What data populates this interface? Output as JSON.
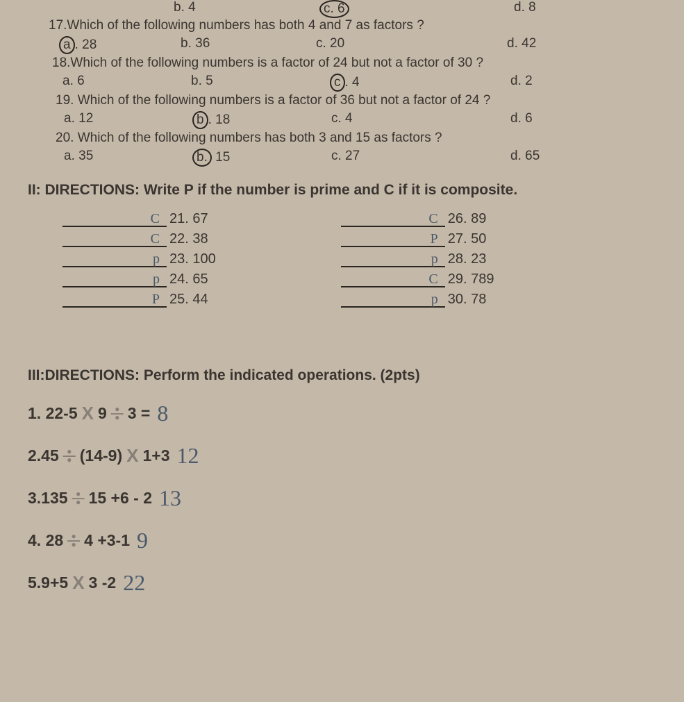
{
  "topOptions": {
    "b": "b. 4",
    "c": "c. 6",
    "d": "d. 8"
  },
  "q17": {
    "text": "17.Which of the following numbers has both 4 and 7 as factors ?",
    "a": "a. 28",
    "b": "b. 36",
    "c": "c. 20",
    "d": "d. 42",
    "circled": "a"
  },
  "q18": {
    "text": "18.Which of the following numbers is a factor of 24 but not a factor of 30 ?",
    "a": "a. 6",
    "b": "b. 5",
    "c": "c. 4",
    "d": "d. 2",
    "circled": "c"
  },
  "q19": {
    "text": "19. Which of the following numbers is a factor of 36 but not a factor of 24 ?",
    "a": "a. 12",
    "b": "b. 18",
    "c": "c. 4",
    "d": "d. 6",
    "circled": "b"
  },
  "q20": {
    "text": "20. Which of the following numbers has both 3 and 15 as factors ?",
    "a": "a. 35",
    "b": "b. 15",
    "c": "c. 27",
    "d": "d. 65",
    "circled": "b"
  },
  "section2": {
    "title": "II: DIRECTIONS: Write P if the number is prime and C if it is composite.",
    "left": [
      {
        "num": "21. 67",
        "ans": "C"
      },
      {
        "num": "22. 38",
        "ans": "C"
      },
      {
        "num": "23. 100",
        "ans": "p"
      },
      {
        "num": "24. 65",
        "ans": "p"
      },
      {
        "num": "25. 44",
        "ans": "P"
      }
    ],
    "right": [
      {
        "num": "26. 89",
        "ans": "C"
      },
      {
        "num": "27. 50",
        "ans": "P"
      },
      {
        "num": "28. 23",
        "ans": "p"
      },
      {
        "num": "29. 789",
        "ans": "C"
      },
      {
        "num": "30. 78",
        "ans": "p"
      }
    ]
  },
  "section3": {
    "title": "III:DIRECTIONS: Perform the indicated operations. (2pts)",
    "items": [
      {
        "pre": "1. 22-5",
        "op1": "mult",
        "mid1": "9",
        "op2": "div",
        "mid2": "3 =",
        "ans": "8"
      },
      {
        "pre": "2.45",
        "op1": "div",
        "mid1": "(14-9)",
        "op2": "mult",
        "mid2": "1+3",
        "ans": "12"
      },
      {
        "pre": "3.135",
        "op1": "div",
        "mid1": "15 +6 - 2",
        "op2": "",
        "mid2": "",
        "ans": "13"
      },
      {
        "pre": "4. 28",
        "op1": "div",
        "mid1": "4 +3-1",
        "op2": "",
        "mid2": "",
        "ans": "9"
      },
      {
        "pre": "5.9+5",
        "op1": "mult",
        "mid1": "3 -2",
        "op2": "",
        "mid2": "",
        "ans": "22"
      }
    ]
  }
}
